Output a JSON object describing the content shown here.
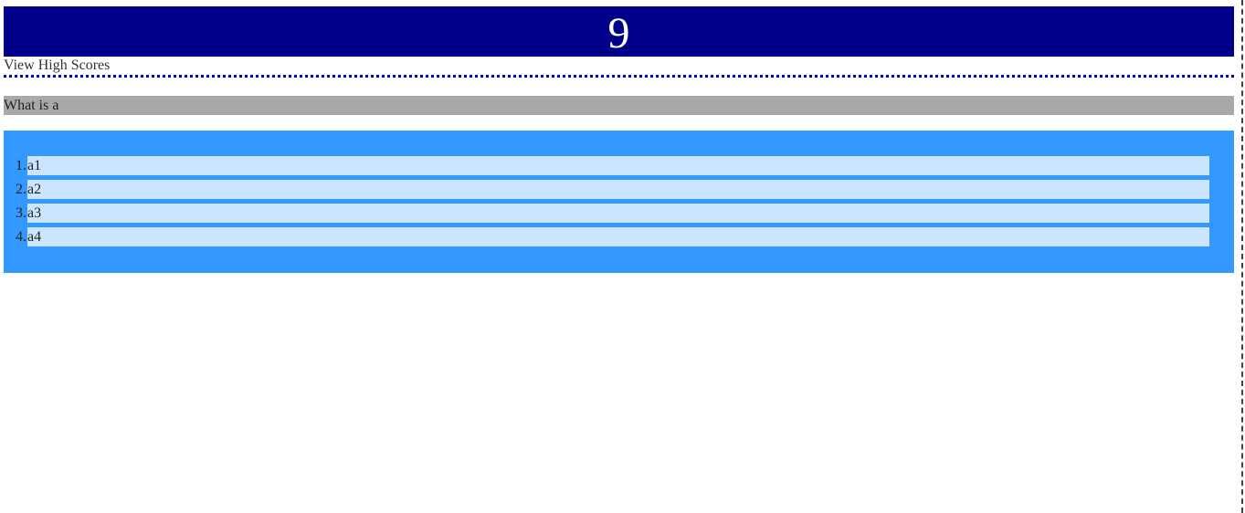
{
  "timer": {
    "value": "9"
  },
  "nav": {
    "high_scores_label": "View High Scores"
  },
  "question": {
    "text": "What is a"
  },
  "answers": [
    {
      "number": "1.",
      "label": "a1"
    },
    {
      "number": "2.",
      "label": "a2"
    },
    {
      "number": "3.",
      "label": "a3"
    },
    {
      "number": "4.",
      "label": "a4"
    }
  ],
  "colors": {
    "timer_background": "#00008b",
    "divider": "#0000cc",
    "question_background": "#a9a9a9",
    "answers_panel": "#3399ff",
    "answer_box": "#cce5ff"
  }
}
